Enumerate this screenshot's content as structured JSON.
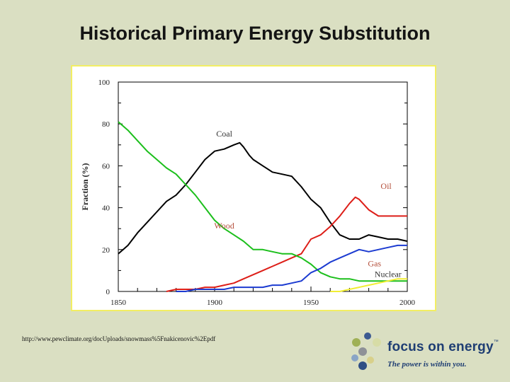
{
  "slide": {
    "title": "Historical Primary Energy Substitution",
    "source": "http://www.pewclimate.org/docUploads/snowmass%5Fnakicenovic%2Epdf"
  },
  "logo": {
    "text": "focus on energy",
    "tm": "™",
    "tagline": "The power is within you.",
    "dot_colors": [
      "#3c5a91",
      "#9fb055",
      "#d7dca6",
      "#8e9197",
      "#8aa5c6",
      "#d8d08a",
      "#2e4e84"
    ]
  },
  "colors": {
    "coal": "#000000",
    "oil": "#dd1e18",
    "wood": "#1cbf1c",
    "gas": "#1c3bd1",
    "nuclear": "#f1ee33",
    "series_label": "#b44e3a"
  },
  "chart_data": {
    "type": "line",
    "title": "",
    "xlabel": "",
    "ylabel": "Fraction (%)",
    "xlim": [
      1850,
      2000
    ],
    "ylim": [
      0,
      100
    ],
    "xticks": [
      "1850",
      "1900",
      "1950",
      "2000"
    ],
    "yticks": [
      "0",
      "20",
      "40",
      "60",
      "80",
      "100"
    ],
    "grid": false,
    "series": [
      {
        "name": "Coal",
        "color": "#000000",
        "x": [
          1850,
          1855,
          1860,
          1865,
          1870,
          1875,
          1880,
          1885,
          1890,
          1895,
          1900,
          1905,
          1910,
          1913,
          1915,
          1918,
          1920,
          1925,
          1930,
          1935,
          1940,
          1945,
          1950,
          1955,
          1960,
          1965,
          1970,
          1975,
          1980,
          1985,
          1990,
          1995,
          2000
        ],
        "y": [
          18,
          22,
          28,
          33,
          38,
          43,
          46,
          51,
          57,
          63,
          67,
          68,
          70,
          71,
          69,
          65,
          63,
          60,
          57,
          56,
          55,
          50,
          44,
          40,
          33,
          27,
          25,
          25,
          27,
          26,
          25,
          25,
          24
        ]
      },
      {
        "name": "Oil",
        "color": "#dd1e18",
        "x": [
          1875,
          1880,
          1885,
          1890,
          1895,
          1900,
          1905,
          1910,
          1915,
          1920,
          1925,
          1930,
          1935,
          1940,
          1945,
          1950,
          1955,
          1960,
          1965,
          1970,
          1973,
          1975,
          1980,
          1985,
          1990,
          1995,
          2000
        ],
        "y": [
          0,
          1,
          1,
          1,
          2,
          2,
          3,
          4,
          6,
          8,
          10,
          12,
          14,
          16,
          18,
          25,
          27,
          31,
          36,
          42,
          45,
          44,
          39,
          36,
          36,
          36,
          36
        ]
      },
      {
        "name": "Wood",
        "color": "#1cbf1c",
        "x": [
          1850,
          1855,
          1860,
          1865,
          1870,
          1875,
          1880,
          1885,
          1890,
          1895,
          1900,
          1905,
          1910,
          1915,
          1920,
          1925,
          1930,
          1935,
          1940,
          1945,
          1950,
          1955,
          1960,
          1965,
          1970,
          1975,
          1980,
          1985,
          1990,
          1995,
          2000
        ],
        "y": [
          81,
          77,
          72,
          67,
          63,
          59,
          56,
          51,
          46,
          40,
          34,
          30,
          27,
          24,
          20,
          20,
          19,
          18,
          18,
          16,
          13,
          9,
          7,
          6,
          6,
          5,
          5,
          5,
          5,
          5,
          5
        ]
      },
      {
        "name": "Gas",
        "color": "#1c3bd1",
        "x": [
          1880,
          1885,
          1890,
          1895,
          1900,
          1905,
          1910,
          1915,
          1920,
          1925,
          1930,
          1935,
          1940,
          1945,
          1950,
          1955,
          1960,
          1965,
          1970,
          1975,
          1980,
          1985,
          1990,
          1995,
          2000
        ],
        "y": [
          0,
          0,
          1,
          1,
          1,
          1,
          2,
          2,
          2,
          2,
          3,
          3,
          4,
          5,
          9,
          11,
          14,
          16,
          18,
          20,
          19,
          20,
          21,
          22,
          22
        ]
      },
      {
        "name": "Nuclear",
        "color": "#f1ee33",
        "x": [
          1960,
          1965,
          1970,
          1975,
          1980,
          1985,
          1990,
          1995,
          2000
        ],
        "y": [
          0,
          0,
          1,
          2,
          3,
          4,
          5,
          6,
          6
        ]
      }
    ],
    "annotations": [
      {
        "text": "Coal",
        "x": 1905,
        "y": 74
      },
      {
        "text": "Oil",
        "x": 1989,
        "y": 49
      },
      {
        "text": "Wood",
        "x": 1905,
        "y": 30
      },
      {
        "text": "Gas",
        "x": 1983,
        "y": 12
      },
      {
        "text": "Nuclear",
        "x": 1990,
        "y": 7
      }
    ]
  }
}
